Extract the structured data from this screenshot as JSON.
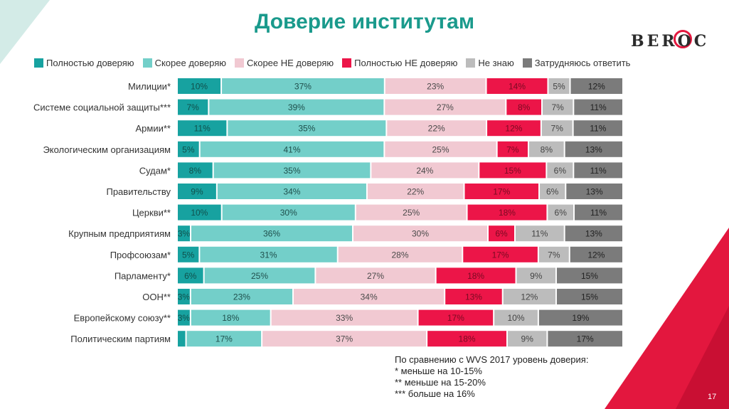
{
  "title": "Доверие институтам",
  "logo": {
    "text": "BEROC"
  },
  "legend": [
    {
      "label": "Полностью доверяю",
      "color": "#17a2a0"
    },
    {
      "label": "Скорее доверяю",
      "color": "#73cfc9"
    },
    {
      "label": "Скорее НЕ доверяю",
      "color": "#f1c9d2"
    },
    {
      "label": "Полностью НЕ доверяю",
      "color": "#ec1548"
    },
    {
      "label": "Не знаю",
      "color": "#bcbcbc"
    },
    {
      "label": "Затрудняюсь ответить",
      "color": "#7b7b7b"
    }
  ],
  "chart_data": {
    "type": "bar",
    "orientation": "horizontal",
    "stacked": true,
    "title": "Доверие институтам",
    "categories": [
      "Милиции*",
      "Системе социальной защиты***",
      "Армии**",
      "Экологическим организациям",
      "Судам*",
      "Правительству",
      "Церкви**",
      "Крупным предприятиям",
      "Профсоюзам*",
      "Парламенту*",
      "ООН**",
      "Европейскому союзу**",
      "Политическим партиям"
    ],
    "series": [
      {
        "name": "Полностью доверяю",
        "color": "#17a2a0",
        "values": [
          10,
          7,
          11,
          5,
          8,
          9,
          10,
          3,
          5,
          6,
          3,
          3,
          2
        ]
      },
      {
        "name": "Скорее доверяю",
        "color": "#73cfc9",
        "values": [
          37,
          39,
          35,
          41,
          35,
          34,
          30,
          36,
          31,
          25,
          23,
          18,
          17
        ]
      },
      {
        "name": "Скорее НЕ доверяю",
        "color": "#f1c9d2",
        "values": [
          23,
          27,
          22,
          25,
          24,
          22,
          25,
          30,
          28,
          27,
          34,
          33,
          37
        ]
      },
      {
        "name": "Полностью НЕ доверяю",
        "color": "#ec1548",
        "values": [
          14,
          8,
          12,
          7,
          15,
          17,
          18,
          6,
          17,
          18,
          13,
          17,
          18
        ]
      },
      {
        "name": "Не знаю",
        "color": "#bcbcbc",
        "values": [
          5,
          7,
          7,
          8,
          6,
          6,
          6,
          11,
          7,
          9,
          12,
          10,
          9
        ]
      },
      {
        "name": "Затрудняюсь ответить",
        "color": "#7b7b7b",
        "values": [
          12,
          11,
          11,
          13,
          11,
          13,
          11,
          13,
          12,
          15,
          15,
          19,
          17
        ]
      }
    ],
    "label_min": 3,
    "value_suffix": "%",
    "legend_position": "top",
    "grid": false
  },
  "notes": [
    "По сравнению с WVS 2017 уровень доверия:",
    "* меньше на 10-15%",
    "** меньше на 15-20%",
    "*** больше на 16%"
  ],
  "page_number": "17"
}
